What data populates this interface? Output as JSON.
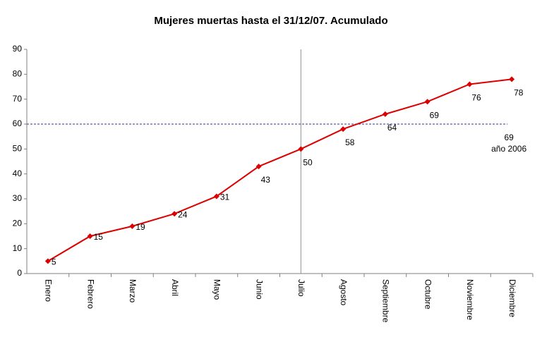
{
  "chart_data": {
    "type": "line",
    "title": "Mujeres muertas hasta el 31/12/07. Acumulado",
    "categories": [
      "Enero",
      "Febrero",
      "Marzo",
      "Abril",
      "Mayo",
      "Junio",
      "Julio",
      "Agosto",
      "Septiembre",
      "Octubre",
      "Noviembre",
      "Diciembre"
    ],
    "series": [
      {
        "name": "Acumulado",
        "color": "#dd0000",
        "values": [
          5,
          15,
          19,
          24,
          31,
          43,
          50,
          58,
          64,
          69,
          76,
          78
        ]
      }
    ],
    "ylim": [
      0,
      90
    ],
    "yticks": [
      0,
      10,
      20,
      30,
      40,
      50,
      60,
      70,
      80,
      90
    ],
    "reference_line": {
      "value": 60,
      "color": "#333399",
      "annotation": [
        "69",
        "año 2006"
      ]
    },
    "vline": "Julio",
    "grid": false
  }
}
